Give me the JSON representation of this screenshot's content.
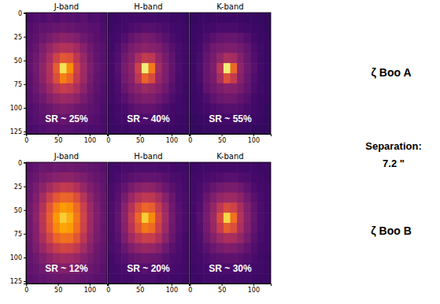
{
  "chart_data": [
    {
      "type": "heatmap",
      "title": "J-band",
      "annotation": "SR ~ 25%",
      "xlim": [
        -0.5,
        127.5
      ],
      "ylim": [
        127.5,
        -0.5
      ],
      "xticks": [
        0,
        50,
        100
      ],
      "yticks": [
        0,
        25,
        50,
        75,
        100,
        125
      ],
      "color": "inferno",
      "color_range": [
        0,
        1
      ],
      "cells": [
        [
          0.22,
          0.24,
          0.23,
          0.25,
          0.24,
          0.26,
          0.25,
          0.24,
          0.26,
          0.23,
          0.24,
          0.22
        ],
        [
          0.24,
          0.26,
          0.27,
          0.28,
          0.29,
          0.3,
          0.29,
          0.28,
          0.27,
          0.26,
          0.25,
          0.23
        ],
        [
          0.25,
          0.27,
          0.3,
          0.33,
          0.36,
          0.38,
          0.37,
          0.35,
          0.31,
          0.28,
          0.26,
          0.24
        ],
        [
          0.26,
          0.29,
          0.34,
          0.4,
          0.45,
          0.48,
          0.47,
          0.43,
          0.37,
          0.31,
          0.27,
          0.25
        ],
        [
          0.27,
          0.31,
          0.37,
          0.45,
          0.55,
          0.62,
          0.6,
          0.5,
          0.41,
          0.33,
          0.28,
          0.25
        ],
        [
          0.27,
          0.32,
          0.39,
          0.48,
          0.63,
          0.92,
          0.75,
          0.55,
          0.43,
          0.34,
          0.29,
          0.26
        ],
        [
          0.26,
          0.31,
          0.38,
          0.47,
          0.59,
          0.72,
          0.66,
          0.52,
          0.42,
          0.33,
          0.28,
          0.25
        ],
        [
          0.26,
          0.3,
          0.35,
          0.42,
          0.49,
          0.53,
          0.51,
          0.46,
          0.38,
          0.31,
          0.27,
          0.24
        ],
        [
          0.25,
          0.28,
          0.31,
          0.36,
          0.4,
          0.42,
          0.41,
          0.38,
          0.33,
          0.29,
          0.26,
          0.24
        ],
        [
          0.24,
          0.26,
          0.28,
          0.3,
          0.33,
          0.34,
          0.33,
          0.31,
          0.29,
          0.27,
          0.25,
          0.23
        ],
        [
          0.23,
          0.25,
          0.26,
          0.27,
          0.28,
          0.29,
          0.28,
          0.27,
          0.26,
          0.25,
          0.24,
          0.22
        ],
        [
          0.22,
          0.23,
          0.24,
          0.25,
          0.25,
          0.26,
          0.25,
          0.24,
          0.24,
          0.23,
          0.23,
          0.22
        ]
      ]
    },
    {
      "type": "heatmap",
      "title": "H-band",
      "annotation": "SR ~ 40%",
      "xlim": [
        -0.5,
        127.5
      ],
      "ylim": [
        127.5,
        -0.5
      ],
      "xticks": [
        0,
        50,
        100
      ],
      "tick_labels": "x",
      "color": "inferno",
      "color_range": [
        0,
        1
      ],
      "cells": [
        [
          0.18,
          0.19,
          0.2,
          0.2,
          0.21,
          0.21,
          0.21,
          0.2,
          0.2,
          0.19,
          0.19,
          0.18
        ],
        [
          0.19,
          0.2,
          0.21,
          0.23,
          0.24,
          0.25,
          0.25,
          0.24,
          0.22,
          0.21,
          0.2,
          0.19
        ],
        [
          0.2,
          0.21,
          0.24,
          0.28,
          0.31,
          0.33,
          0.32,
          0.29,
          0.26,
          0.22,
          0.21,
          0.19
        ],
        [
          0.2,
          0.23,
          0.28,
          0.33,
          0.36,
          0.38,
          0.37,
          0.35,
          0.3,
          0.25,
          0.22,
          0.2
        ],
        [
          0.21,
          0.24,
          0.31,
          0.36,
          0.45,
          0.52,
          0.5,
          0.4,
          0.33,
          0.27,
          0.22,
          0.2
        ],
        [
          0.21,
          0.25,
          0.33,
          0.38,
          0.55,
          0.95,
          0.7,
          0.44,
          0.35,
          0.28,
          0.23,
          0.2
        ],
        [
          0.21,
          0.24,
          0.32,
          0.37,
          0.5,
          0.65,
          0.58,
          0.41,
          0.34,
          0.27,
          0.22,
          0.2
        ],
        [
          0.2,
          0.23,
          0.29,
          0.34,
          0.38,
          0.42,
          0.4,
          0.36,
          0.31,
          0.25,
          0.22,
          0.19
        ],
        [
          0.2,
          0.22,
          0.25,
          0.3,
          0.33,
          0.35,
          0.34,
          0.31,
          0.27,
          0.23,
          0.21,
          0.19
        ],
        [
          0.19,
          0.21,
          0.22,
          0.25,
          0.27,
          0.28,
          0.28,
          0.26,
          0.23,
          0.21,
          0.2,
          0.19
        ],
        [
          0.19,
          0.2,
          0.21,
          0.22,
          0.23,
          0.23,
          0.23,
          0.22,
          0.21,
          0.2,
          0.19,
          0.18
        ],
        [
          0.18,
          0.19,
          0.19,
          0.2,
          0.2,
          0.2,
          0.2,
          0.2,
          0.19,
          0.19,
          0.18,
          0.18
        ]
      ]
    },
    {
      "type": "heatmap",
      "title": "K-band",
      "annotation": "SR ~ 55%",
      "xlim": [
        -0.5,
        127.5
      ],
      "ylim": [
        127.5,
        -0.5
      ],
      "xticks": [
        0,
        50,
        100
      ],
      "tick_labels": "x",
      "color": "inferno",
      "color_range": [
        0,
        1
      ],
      "cells": [
        [
          0.17,
          0.18,
          0.18,
          0.19,
          0.19,
          0.19,
          0.19,
          0.19,
          0.18,
          0.18,
          0.17,
          0.17
        ],
        [
          0.18,
          0.19,
          0.2,
          0.21,
          0.22,
          0.22,
          0.22,
          0.21,
          0.2,
          0.19,
          0.18,
          0.17
        ],
        [
          0.18,
          0.2,
          0.23,
          0.26,
          0.28,
          0.29,
          0.29,
          0.27,
          0.24,
          0.21,
          0.19,
          0.18
        ],
        [
          0.19,
          0.21,
          0.26,
          0.31,
          0.33,
          0.34,
          0.34,
          0.32,
          0.28,
          0.23,
          0.2,
          0.18
        ],
        [
          0.19,
          0.22,
          0.28,
          0.33,
          0.4,
          0.46,
          0.44,
          0.36,
          0.3,
          0.24,
          0.2,
          0.18
        ],
        [
          0.19,
          0.23,
          0.29,
          0.34,
          0.5,
          0.95,
          0.66,
          0.39,
          0.31,
          0.25,
          0.21,
          0.18
        ],
        [
          0.19,
          0.22,
          0.29,
          0.33,
          0.45,
          0.6,
          0.52,
          0.37,
          0.3,
          0.24,
          0.2,
          0.18
        ],
        [
          0.19,
          0.21,
          0.27,
          0.31,
          0.34,
          0.37,
          0.36,
          0.33,
          0.28,
          0.23,
          0.2,
          0.18
        ],
        [
          0.18,
          0.2,
          0.23,
          0.27,
          0.3,
          0.31,
          0.31,
          0.28,
          0.25,
          0.21,
          0.19,
          0.18
        ],
        [
          0.18,
          0.19,
          0.21,
          0.23,
          0.24,
          0.25,
          0.25,
          0.24,
          0.22,
          0.2,
          0.19,
          0.17
        ],
        [
          0.17,
          0.18,
          0.19,
          0.2,
          0.21,
          0.21,
          0.21,
          0.2,
          0.19,
          0.19,
          0.18,
          0.17
        ],
        [
          0.17,
          0.17,
          0.18,
          0.18,
          0.19,
          0.19,
          0.19,
          0.18,
          0.18,
          0.17,
          0.17,
          0.17
        ]
      ]
    },
    {
      "type": "heatmap",
      "title": "J-band",
      "annotation": "SR ~ 12%",
      "xlim": [
        -0.5,
        127.5
      ],
      "ylim": [
        127.5,
        -0.5
      ],
      "xticks": [
        0,
        50,
        100
      ],
      "yticks": [
        0,
        25,
        50,
        75,
        100,
        125
      ],
      "color": "inferno",
      "color_range": [
        0,
        1
      ],
      "cells": [
        [
          0.26,
          0.28,
          0.3,
          0.29,
          0.31,
          0.3,
          0.31,
          0.3,
          0.29,
          0.28,
          0.27,
          0.26
        ],
        [
          0.28,
          0.3,
          0.33,
          0.35,
          0.37,
          0.38,
          0.38,
          0.36,
          0.34,
          0.31,
          0.29,
          0.27
        ],
        [
          0.29,
          0.33,
          0.38,
          0.44,
          0.49,
          0.52,
          0.51,
          0.47,
          0.41,
          0.35,
          0.31,
          0.28
        ],
        [
          0.3,
          0.35,
          0.44,
          0.54,
          0.62,
          0.66,
          0.65,
          0.59,
          0.49,
          0.39,
          0.33,
          0.29
        ],
        [
          0.31,
          0.37,
          0.48,
          0.61,
          0.72,
          0.78,
          0.76,
          0.67,
          0.54,
          0.42,
          0.34,
          0.29
        ],
        [
          0.31,
          0.38,
          0.5,
          0.64,
          0.77,
          0.88,
          0.82,
          0.7,
          0.56,
          0.43,
          0.35,
          0.3
        ],
        [
          0.31,
          0.37,
          0.49,
          0.62,
          0.74,
          0.8,
          0.78,
          0.68,
          0.55,
          0.42,
          0.34,
          0.29
        ],
        [
          0.3,
          0.36,
          0.46,
          0.56,
          0.65,
          0.69,
          0.68,
          0.61,
          0.5,
          0.4,
          0.33,
          0.29
        ],
        [
          0.29,
          0.34,
          0.41,
          0.48,
          0.53,
          0.56,
          0.55,
          0.51,
          0.44,
          0.37,
          0.31,
          0.28
        ],
        [
          0.28,
          0.31,
          0.35,
          0.39,
          0.42,
          0.44,
          0.43,
          0.41,
          0.37,
          0.33,
          0.3,
          0.27
        ],
        [
          0.27,
          0.29,
          0.31,
          0.33,
          0.35,
          0.36,
          0.35,
          0.34,
          0.32,
          0.3,
          0.28,
          0.26
        ],
        [
          0.26,
          0.27,
          0.28,
          0.29,
          0.3,
          0.3,
          0.3,
          0.29,
          0.28,
          0.27,
          0.26,
          0.25
        ]
      ]
    },
    {
      "type": "heatmap",
      "title": "H-band",
      "annotation": "SR ~ 20%",
      "xlim": [
        -0.5,
        127.5
      ],
      "ylim": [
        127.5,
        -0.5
      ],
      "xticks": [
        0,
        50,
        100
      ],
      "tick_labels": "x",
      "color": "inferno",
      "color_range": [
        0,
        1
      ],
      "cells": [
        [
          0.2,
          0.21,
          0.22,
          0.22,
          0.23,
          0.23,
          0.23,
          0.22,
          0.22,
          0.21,
          0.2,
          0.2
        ],
        [
          0.21,
          0.22,
          0.24,
          0.26,
          0.27,
          0.28,
          0.28,
          0.27,
          0.25,
          0.23,
          0.22,
          0.21
        ],
        [
          0.22,
          0.24,
          0.28,
          0.33,
          0.37,
          0.39,
          0.38,
          0.35,
          0.3,
          0.26,
          0.23,
          0.21
        ],
        [
          0.22,
          0.26,
          0.33,
          0.41,
          0.48,
          0.51,
          0.5,
          0.45,
          0.37,
          0.29,
          0.24,
          0.22
        ],
        [
          0.23,
          0.27,
          0.37,
          0.48,
          0.59,
          0.66,
          0.64,
          0.53,
          0.42,
          0.31,
          0.25,
          0.22
        ],
        [
          0.23,
          0.28,
          0.38,
          0.51,
          0.66,
          0.88,
          0.74,
          0.57,
          0.44,
          0.32,
          0.26,
          0.22
        ],
        [
          0.23,
          0.27,
          0.37,
          0.49,
          0.61,
          0.7,
          0.67,
          0.54,
          0.42,
          0.31,
          0.25,
          0.22
        ],
        [
          0.22,
          0.26,
          0.34,
          0.43,
          0.5,
          0.54,
          0.53,
          0.47,
          0.38,
          0.29,
          0.24,
          0.21
        ],
        [
          0.22,
          0.24,
          0.29,
          0.35,
          0.39,
          0.41,
          0.4,
          0.37,
          0.31,
          0.26,
          0.23,
          0.21
        ],
        [
          0.21,
          0.23,
          0.25,
          0.28,
          0.3,
          0.31,
          0.3,
          0.29,
          0.26,
          0.23,
          0.22,
          0.2
        ],
        [
          0.2,
          0.21,
          0.22,
          0.23,
          0.24,
          0.25,
          0.24,
          0.24,
          0.23,
          0.22,
          0.21,
          0.2
        ],
        [
          0.2,
          0.2,
          0.21,
          0.21,
          0.22,
          0.22,
          0.22,
          0.21,
          0.21,
          0.2,
          0.2,
          0.19
        ]
      ]
    },
    {
      "type": "heatmap",
      "title": "K-band",
      "annotation": "SR ~ 30%",
      "xlim": [
        -0.5,
        127.5
      ],
      "ylim": [
        127.5,
        -0.5
      ],
      "xticks": [
        0,
        50,
        100
      ],
      "tick_labels": "x",
      "color": "inferno",
      "color_range": [
        0,
        1
      ],
      "cells": [
        [
          0.19,
          0.2,
          0.2,
          0.21,
          0.21,
          0.21,
          0.21,
          0.21,
          0.2,
          0.2,
          0.19,
          0.19
        ],
        [
          0.2,
          0.21,
          0.22,
          0.23,
          0.24,
          0.25,
          0.25,
          0.24,
          0.23,
          0.21,
          0.2,
          0.19
        ],
        [
          0.2,
          0.22,
          0.25,
          0.29,
          0.32,
          0.33,
          0.33,
          0.31,
          0.27,
          0.23,
          0.21,
          0.2
        ],
        [
          0.21,
          0.23,
          0.29,
          0.35,
          0.4,
          0.42,
          0.42,
          0.38,
          0.32,
          0.26,
          0.22,
          0.2
        ],
        [
          0.21,
          0.24,
          0.32,
          0.4,
          0.5,
          0.58,
          0.55,
          0.45,
          0.36,
          0.28,
          0.23,
          0.2
        ],
        [
          0.21,
          0.25,
          0.33,
          0.42,
          0.58,
          0.9,
          0.68,
          0.48,
          0.37,
          0.29,
          0.23,
          0.21
        ],
        [
          0.21,
          0.24,
          0.32,
          0.41,
          0.53,
          0.64,
          0.59,
          0.46,
          0.36,
          0.28,
          0.23,
          0.2
        ],
        [
          0.21,
          0.23,
          0.3,
          0.36,
          0.42,
          0.46,
          0.45,
          0.4,
          0.33,
          0.26,
          0.22,
          0.2
        ],
        [
          0.2,
          0.22,
          0.26,
          0.3,
          0.33,
          0.35,
          0.34,
          0.32,
          0.28,
          0.24,
          0.21,
          0.2
        ],
        [
          0.2,
          0.21,
          0.23,
          0.25,
          0.26,
          0.27,
          0.27,
          0.26,
          0.24,
          0.22,
          0.2,
          0.19
        ],
        [
          0.19,
          0.2,
          0.21,
          0.22,
          0.22,
          0.23,
          0.22,
          0.22,
          0.21,
          0.2,
          0.2,
          0.19
        ],
        [
          0.19,
          0.19,
          0.2,
          0.2,
          0.2,
          0.2,
          0.2,
          0.2,
          0.2,
          0.19,
          0.19,
          0.19
        ]
      ]
    }
  ],
  "row_labels": [
    "ζ Boo A",
    "ζ Boo B"
  ],
  "separation_text": [
    "Separation:",
    "7.2 \""
  ]
}
